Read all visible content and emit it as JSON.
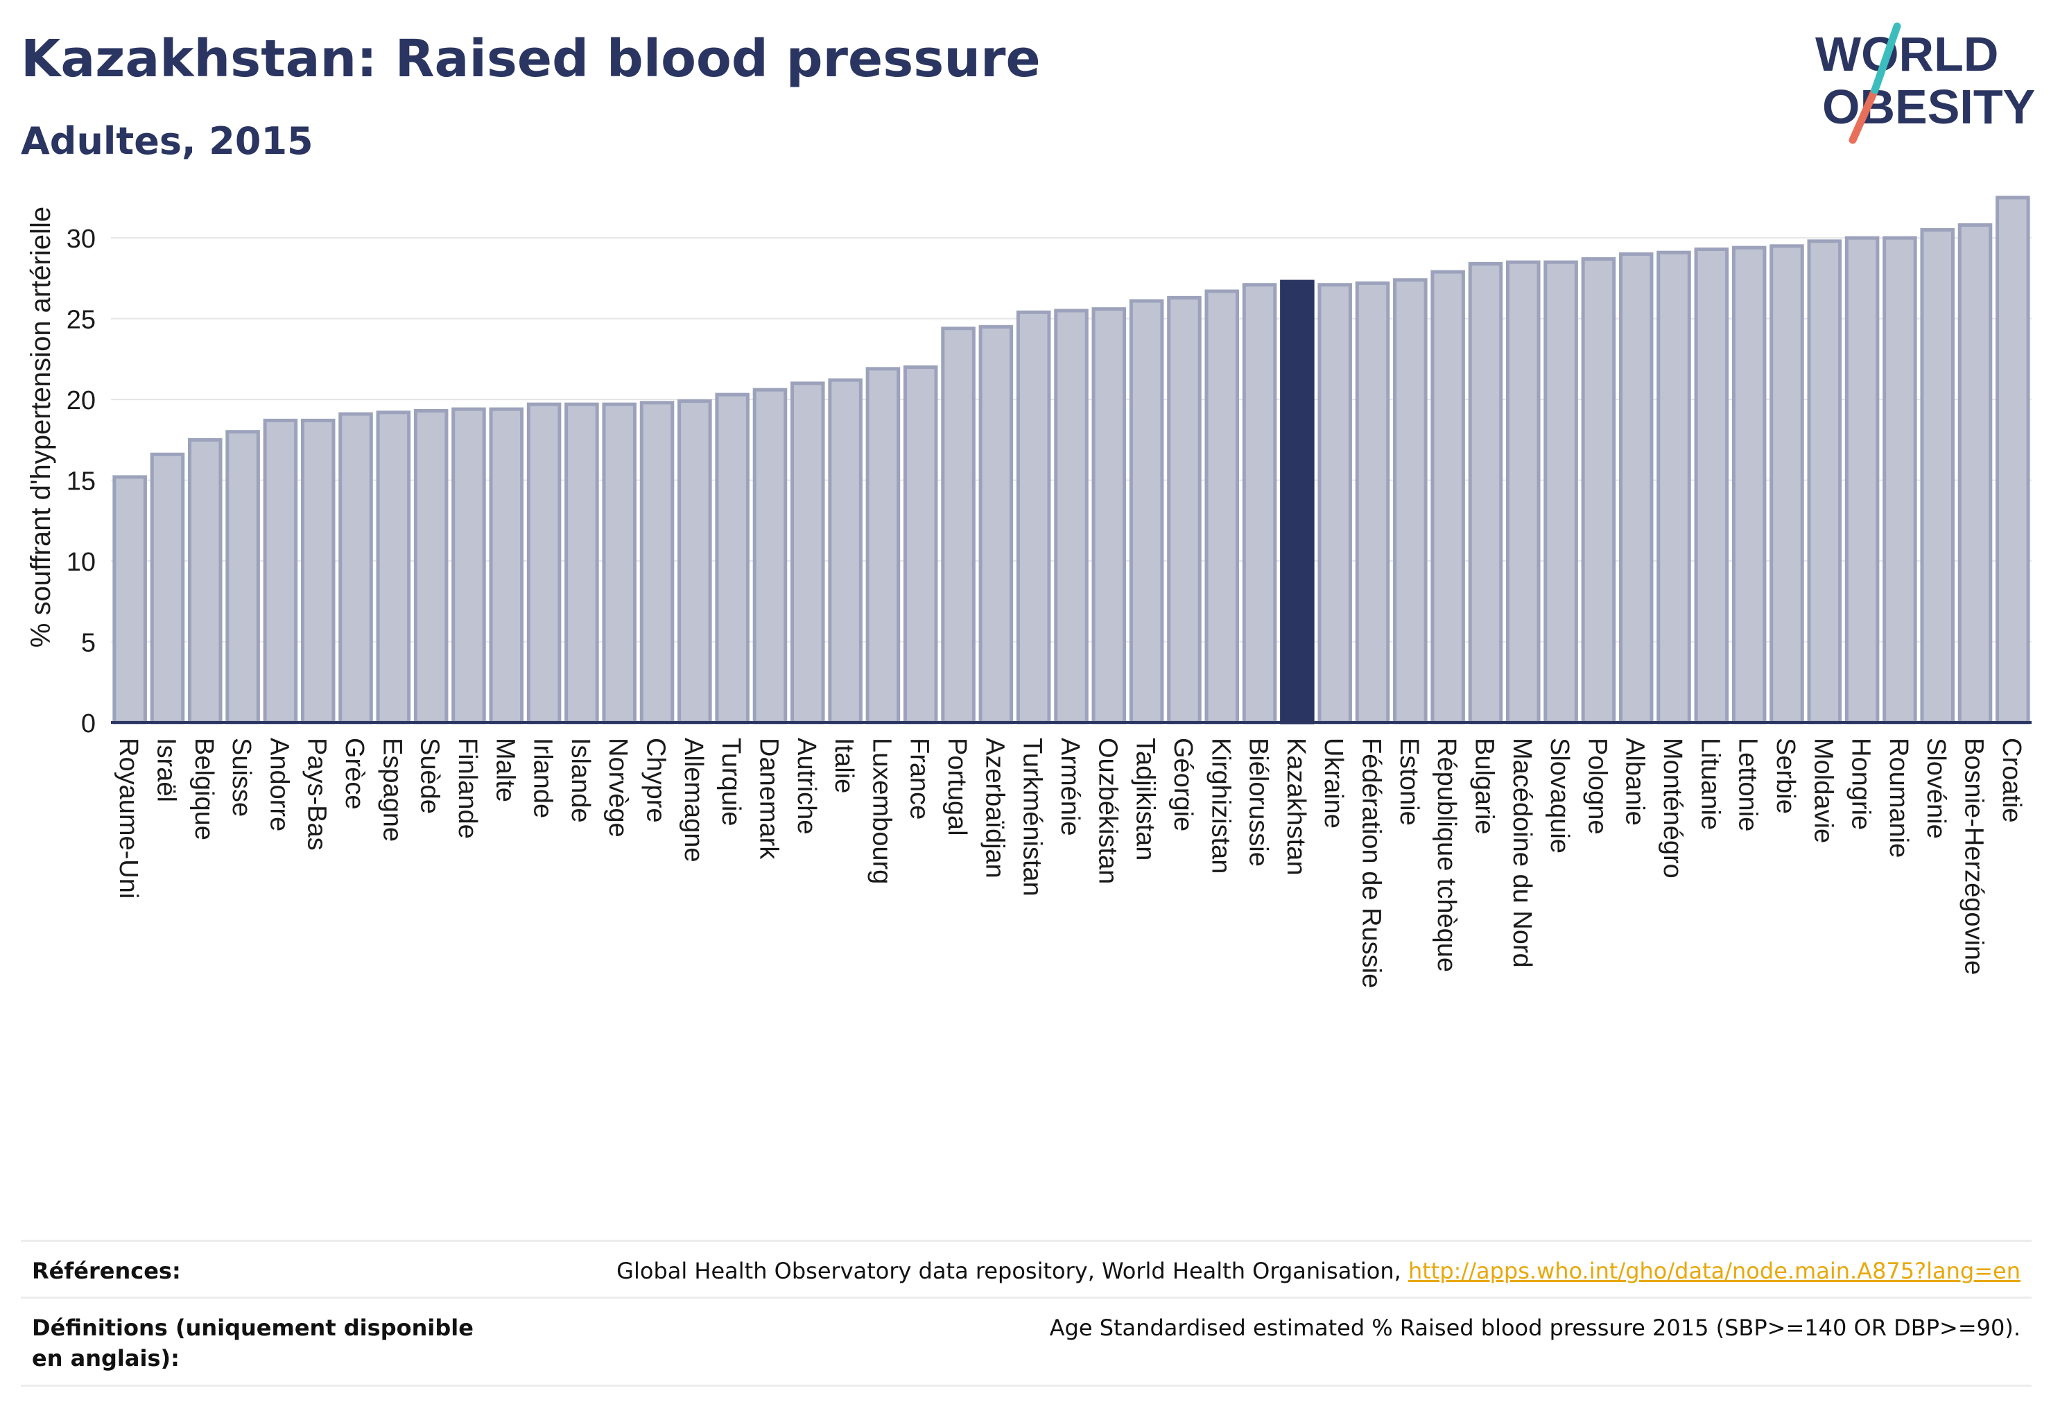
{
  "header": {
    "title": "Kazakhstan: Raised blood pressure",
    "subtitle": "Adultes, 2015"
  },
  "logo": {
    "line1": "WORLD",
    "line2": "OBESITY",
    "icon": "slash-logo-mark",
    "colors": {
      "text": "#2b3561",
      "teal": "#3cbdbd",
      "coral": "#e8705a"
    }
  },
  "colors": {
    "bar": "#bfc3d2",
    "bar_stroke": "#9ca2bb",
    "highlight": "#2b3561",
    "grid": "#e6e6e6",
    "text": "#2b3561"
  },
  "chart_data": {
    "type": "bar",
    "title": "",
    "xlabel": "",
    "ylabel": "% souffrant d'hypertension artérielle",
    "ylim": [
      0,
      34
    ],
    "yticks": [
      0,
      5,
      10,
      15,
      20,
      25,
      30
    ],
    "grid": true,
    "highlight": "Kazakhstan",
    "categories": [
      "Royaume-Uni",
      "Israël",
      "Belgique",
      "Suisse",
      "Andorre",
      "Pays-Bas",
      "Grèce",
      "Espagne",
      "Suède",
      "Finlande",
      "Malte",
      "Irlande",
      "Islande",
      "Norvège",
      "Chypre",
      "Allemagne",
      "Turquie",
      "Danemark",
      "Autriche",
      "Italie",
      "Luxembourg",
      "France",
      "Portugal",
      "Azerbaïdjan",
      "Turkménistan",
      "Arménie",
      "Ouzbékistan",
      "Tadjikistan",
      "Géorgie",
      "Kirghizistan",
      "Biélorussie",
      "Kazakhstan",
      "Ukraine",
      "Fédération de Russie",
      "Estonie",
      "République tchèque",
      "Bulgarie",
      "Macédoine du Nord",
      "Slovaquie",
      "Pologne",
      "Albanie",
      "Monténégro",
      "Lituanie",
      "Lettonie",
      "Serbie",
      "Moldavie",
      "Hongrie",
      "Roumanie",
      "Slovénie",
      "Bosnie-Herzégovine",
      "Croatie"
    ],
    "values": [
      15.2,
      16.6,
      17.5,
      18.0,
      18.7,
      18.7,
      19.1,
      19.2,
      19.3,
      19.4,
      19.4,
      19.7,
      19.7,
      19.7,
      19.8,
      19.9,
      20.3,
      20.6,
      21.0,
      21.2,
      21.9,
      22.0,
      24.4,
      24.5,
      25.4,
      25.5,
      25.6,
      26.1,
      26.3,
      26.7,
      27.1,
      27.3,
      27.1,
      27.2,
      27.4,
      27.9,
      28.4,
      28.5,
      28.5,
      28.7,
      29.0,
      29.1,
      29.3,
      29.4,
      29.5,
      29.8,
      30.0,
      30.0,
      30.5,
      30.8,
      32.5
    ]
  },
  "footer": {
    "references_label": "Références:",
    "references_text": "Global Health Observatory data repository, World Health Organisation, ",
    "references_link": "http://apps.who.int/gho/data/node.main.A875?lang=en",
    "definitions_label": "Définitions (uniquement disponible en anglais):",
    "definitions_text": "Age Standardised estimated % Raised blood pressure 2015 (SBP>=140 OR DBP>=90)."
  }
}
